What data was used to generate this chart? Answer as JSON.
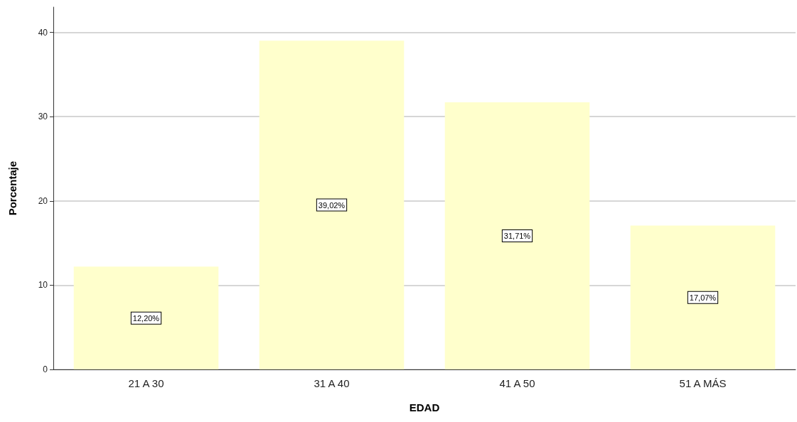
{
  "chart_data": {
    "type": "bar",
    "xlabel": "EDAD",
    "ylabel": "Porcentaje",
    "categories": [
      "21 A 30",
      "31 A 40",
      "41 A 50",
      "51 A MÁS"
    ],
    "values": [
      12.2,
      39.02,
      31.71,
      17.07
    ],
    "value_labels": [
      "12,20%",
      "39,02%",
      "31,71%",
      "17,07%"
    ],
    "color": "#ffffcc",
    "ylim": [
      0,
      43
    ],
    "yticks": [
      0,
      10,
      20,
      30,
      40
    ],
    "grid": "y"
  }
}
